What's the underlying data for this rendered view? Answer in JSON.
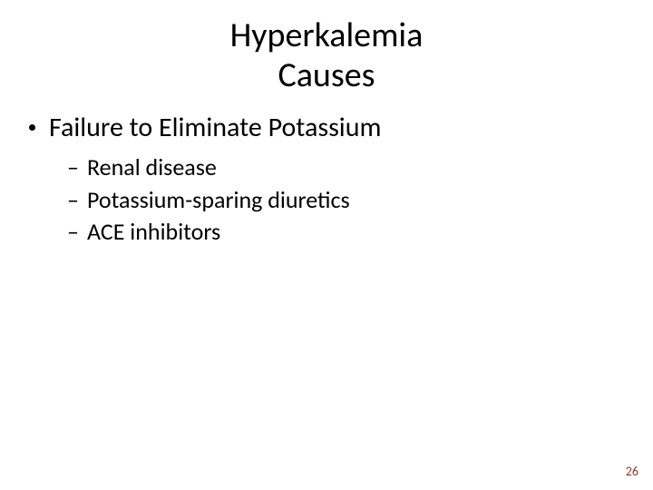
{
  "title": {
    "line1": "Hyperkalemia",
    "line2": "Causes",
    "fontsize": 38,
    "color": "#000000"
  },
  "body": {
    "level1": {
      "text": "Failure to Eliminate Potassium",
      "bullet_color": "#000000",
      "fontsize": 30
    },
    "level2": [
      {
        "text": "Renal disease"
      },
      {
        "text": "Potassium-sparing diuretics"
      },
      {
        "text": "ACE inhibitors"
      }
    ],
    "level2_fontsize": 26,
    "dash": "–"
  },
  "page_number": {
    "value": "26",
    "color": "#8b3a1e",
    "fontsize": 14
  },
  "background_color": "#ffffff"
}
